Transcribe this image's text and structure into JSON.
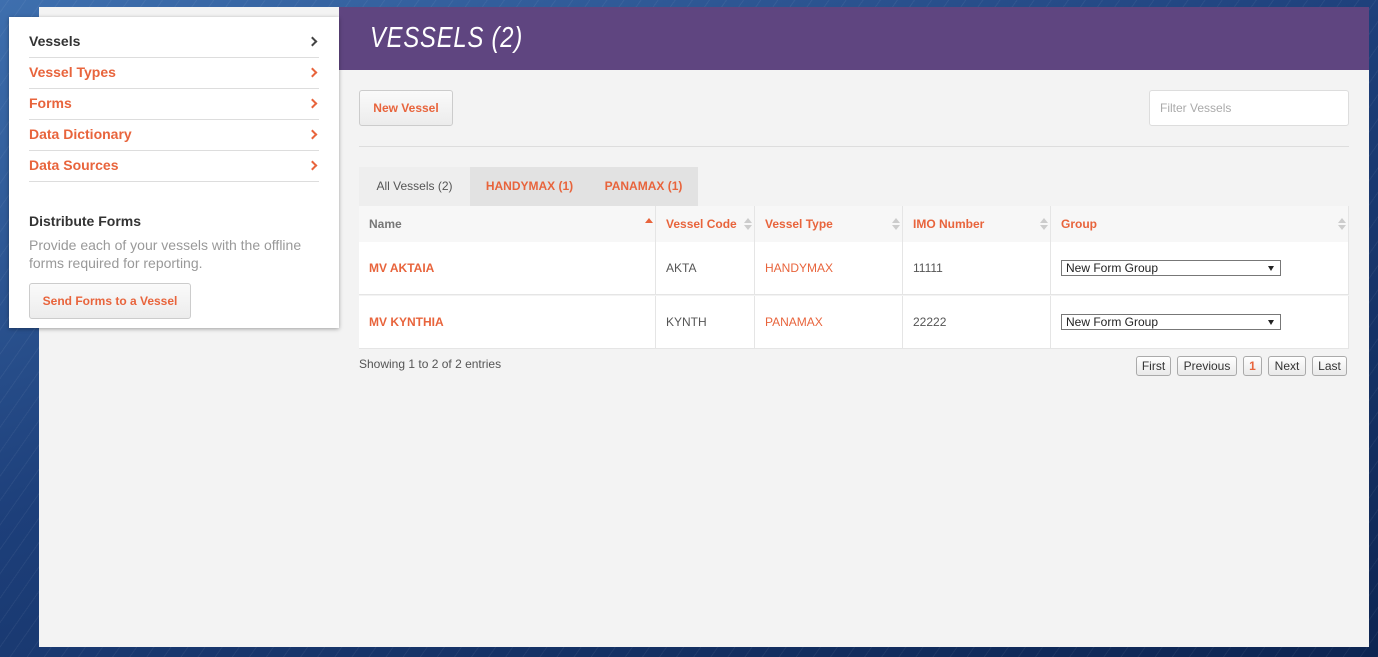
{
  "sidebar": {
    "menu": [
      "Vessels",
      "Vessel Types",
      "Forms",
      "Data Dictionary",
      "Data Sources"
    ],
    "distribute": {
      "title": "Distribute Forms",
      "text": "Provide each of your vessels with the offline forms required for reporting.",
      "button": "Send Forms to a Vessel"
    }
  },
  "header": {
    "title": "VESSELS (2)"
  },
  "toolbar": {
    "new_button": "New Vessel",
    "filter_placeholder": "Filter Vessels"
  },
  "tabs": [
    "All Vessels (2)",
    "HANDYMAX (1)",
    "PANAMAX (1)"
  ],
  "table": {
    "columns": [
      "Name",
      "Vessel Code",
      "Vessel Type",
      "IMO Number",
      "Group"
    ],
    "rows": [
      [
        "MV AKTAIA",
        "AKTA",
        "HANDYMAX",
        "11111",
        "New Form Group"
      ],
      [
        "MV KYNTHIA",
        "KYNTH",
        "PANAMAX",
        "22222",
        "New Form Group"
      ]
    ]
  },
  "footer": {
    "info": "Showing 1 to 2 of 2 entries",
    "pagination": [
      "First",
      "Previous",
      "1",
      "Next",
      "Last"
    ]
  }
}
